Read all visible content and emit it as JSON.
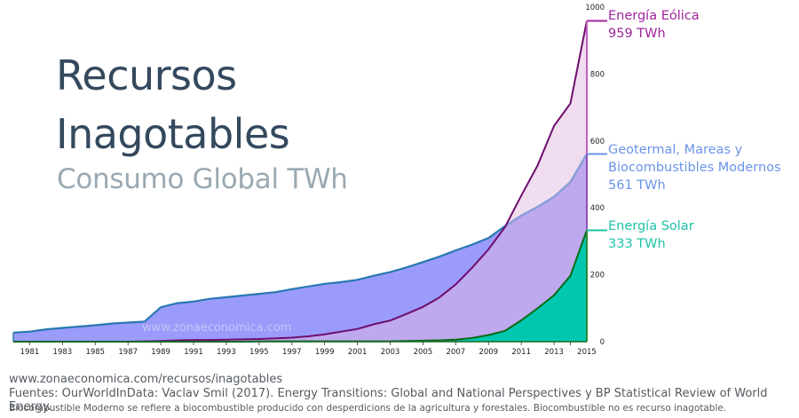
{
  "header": {
    "title_line1": "Recursos",
    "title_line2": "Inagotables",
    "subtitle": "Consumo Global TWh"
  },
  "watermark": "www.zonaeconomica.com",
  "footer": {
    "url": "www.zonaeconomica.com/recursos/inagotables",
    "sources": "Fuentes: OurWorldInData: Vaclav Smil (2017). Energy Transitions: Global and National Perspectives y BP Statistical Review of World Energy.",
    "note": "Biocombustible Moderno se refiere a biocombustible producido con desperdicions de la agricultura y forestales. Biocombustible no es recurso inagotable."
  },
  "labels": {
    "wind": {
      "name": "Energía Eólica",
      "value": "959 TWh",
      "color": "#a0249c"
    },
    "geo": {
      "name_line1": "Geotermal, Mareas y",
      "name_line2": "Biocombustibles Modernos",
      "value": "561 TWh",
      "color": "#6a94e8"
    },
    "solar": {
      "name": "Energía Solar",
      "value": "333 TWh",
      "color": "#1cc3a7"
    }
  },
  "chart_data": {
    "type": "area",
    "title": "Recursos Inagotables — Consumo Global TWh",
    "xlabel": "",
    "ylabel": "TWh",
    "x": [
      1980,
      1981,
      1982,
      1983,
      1984,
      1985,
      1986,
      1987,
      1988,
      1989,
      1990,
      1991,
      1992,
      1993,
      1994,
      1995,
      1996,
      1997,
      1998,
      1999,
      2000,
      2001,
      2002,
      2003,
      2004,
      2005,
      2006,
      2007,
      2008,
      2009,
      2010,
      2011,
      2012,
      2013,
      2014,
      2015
    ],
    "x_tick_labels": [
      "1981",
      "1983",
      "1985",
      "1987",
      "1989",
      "1991",
      "1993",
      "1995",
      "1997",
      "1999",
      "2001",
      "2003",
      "2005",
      "2007",
      "2009",
      "2011",
      "2013",
      "2015"
    ],
    "xlim": [
      1980,
      2015
    ],
    "ylim": [
      0,
      1000
    ],
    "y_ticks": [
      0,
      200,
      400,
      600,
      800,
      1000
    ],
    "y_axis_position": "right",
    "grid": false,
    "legend": "direct-labels-right",
    "series": [
      {
        "name": "Geotermal, Mareas y Biocombustibles Modernos",
        "fill": "#9b9bfb",
        "stroke": "#2878b0",
        "values": [
          27,
          30,
          37,
          41,
          45,
          49,
          54,
          57,
          60,
          103,
          115,
          120,
          128,
          133,
          138,
          143,
          148,
          157,
          165,
          173,
          178,
          185,
          197,
          208,
          222,
          238,
          254,
          273,
          290,
          310,
          345,
          377,
          403,
          433,
          477,
          561
        ]
      },
      {
        "name": "Energía Eólica",
        "fill": "#f0ddef",
        "stroke": "#6e0d6e",
        "values": [
          0,
          0,
          0,
          0,
          0,
          0,
          0,
          0,
          1,
          2,
          4,
          5,
          5,
          6,
          7,
          8,
          10,
          12,
          16,
          22,
          30,
          38,
          52,
          63,
          83,
          104,
          132,
          171,
          221,
          276,
          342,
          437,
          527,
          645,
          712,
          959
        ]
      },
      {
        "name": "Energía Solar",
        "fill": "#00c8b0",
        "stroke": "#0a6a14",
        "values": [
          0,
          0,
          0,
          0,
          0,
          0,
          0,
          0,
          0,
          0,
          0,
          0,
          0,
          0,
          0,
          1,
          1,
          1,
          1,
          1,
          1,
          1,
          1,
          1,
          2,
          3,
          4,
          6,
          11,
          20,
          32,
          64,
          100,
          139,
          197,
          333
        ]
      }
    ],
    "overlap_fill": "#bea8ee"
  }
}
